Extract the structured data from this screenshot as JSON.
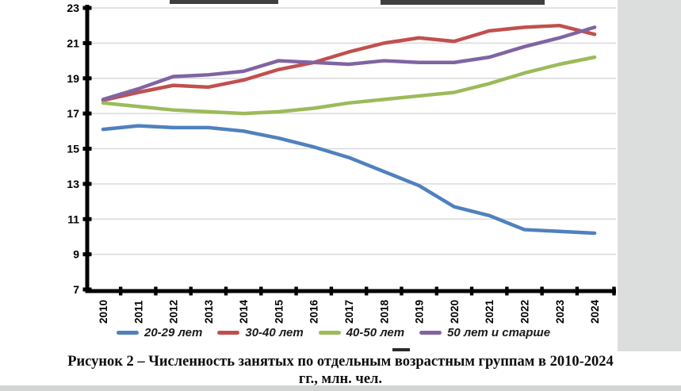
{
  "figure": {
    "caption_line1": "Рисунок 2 – Численность занятых по отдельным возрастным группам в 2010-2024",
    "caption_line2": "гг., млн. чел."
  },
  "chart_data": {
    "type": "line",
    "title": "",
    "xlabel": "",
    "ylabel": "",
    "ylim": [
      7,
      23
    ],
    "y_ticks": [
      7,
      9,
      11,
      13,
      15,
      17,
      19,
      21,
      23
    ],
    "grid": true,
    "gridline_color": "#d9d9d9",
    "axis_color": "#000000",
    "legend_position": "bottom",
    "x_tick_rotation": 90,
    "categories": [
      "2010",
      "2011",
      "2012",
      "2013",
      "2014",
      "2015",
      "2016",
      "2017",
      "2018",
      "2019",
      "2020",
      "2021",
      "2022",
      "2023",
      "2024"
    ],
    "series": [
      {
        "name": "20-29 лет",
        "color": "#4F81BD",
        "values": [
          16.1,
          16.3,
          16.2,
          16.2,
          16.0,
          15.6,
          15.1,
          14.5,
          13.7,
          12.9,
          11.7,
          11.2,
          10.4,
          10.3,
          10.2
        ]
      },
      {
        "name": "30-40 лет",
        "color": "#C0504D",
        "values": [
          17.75,
          18.2,
          18.6,
          18.5,
          18.9,
          19.5,
          19.9,
          20.5,
          21.0,
          21.3,
          21.1,
          21.7,
          21.9,
          22.0,
          21.5
        ]
      },
      {
        "name": "40-50 лет",
        "color": "#9BBB59",
        "values": [
          17.6,
          17.4,
          17.2,
          17.1,
          17.0,
          17.1,
          17.3,
          17.6,
          17.8,
          18.0,
          18.2,
          18.7,
          19.3,
          19.8,
          20.2
        ]
      },
      {
        "name": "50 лет и старше",
        "color": "#8064A2",
        "values": [
          17.8,
          18.4,
          19.1,
          19.2,
          19.4,
          20.0,
          19.9,
          19.8,
          20.0,
          19.9,
          19.9,
          20.2,
          20.8,
          21.3,
          21.9
        ]
      }
    ]
  }
}
